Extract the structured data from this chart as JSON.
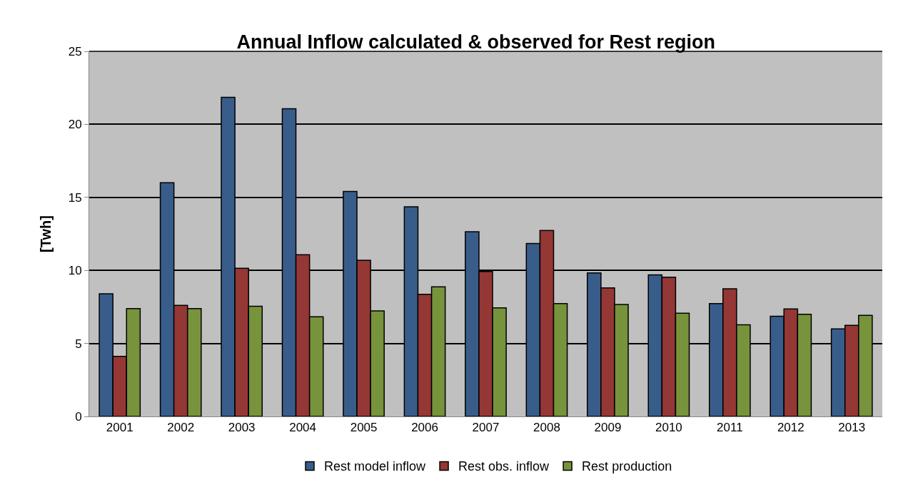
{
  "chart_data": {
    "type": "bar",
    "title": "Annual Inflow calculated & observed for Rest region",
    "ylabel": "[Twh]",
    "categories": [
      "2001",
      "2002",
      "2003",
      "2004",
      "2005",
      "2006",
      "2007",
      "2008",
      "2009",
      "2010",
      "2011",
      "2012",
      "2013"
    ],
    "series": [
      {
        "name": "Rest model inflow",
        "color": "#385d8a",
        "values": [
          8.4,
          16.0,
          21.85,
          21.07,
          15.4,
          14.36,
          12.65,
          11.84,
          9.83,
          9.69,
          7.73,
          6.86,
          5.99
        ]
      },
      {
        "name": "Rest obs. inflow",
        "color": "#953735",
        "values": [
          4.11,
          7.6,
          10.15,
          11.07,
          10.69,
          8.36,
          9.92,
          12.73,
          8.8,
          9.53,
          8.74,
          7.36,
          6.24
        ]
      },
      {
        "name": "Rest production",
        "color": "#77933c",
        "values": [
          7.38,
          7.38,
          7.55,
          6.82,
          7.23,
          8.88,
          7.44,
          7.73,
          7.67,
          7.07,
          6.28,
          7.0,
          6.92
        ]
      }
    ],
    "ylim": [
      0,
      25
    ],
    "yticks": [
      0,
      5,
      10,
      15,
      20,
      25
    ],
    "grid": "y",
    "legend": "bottom"
  }
}
